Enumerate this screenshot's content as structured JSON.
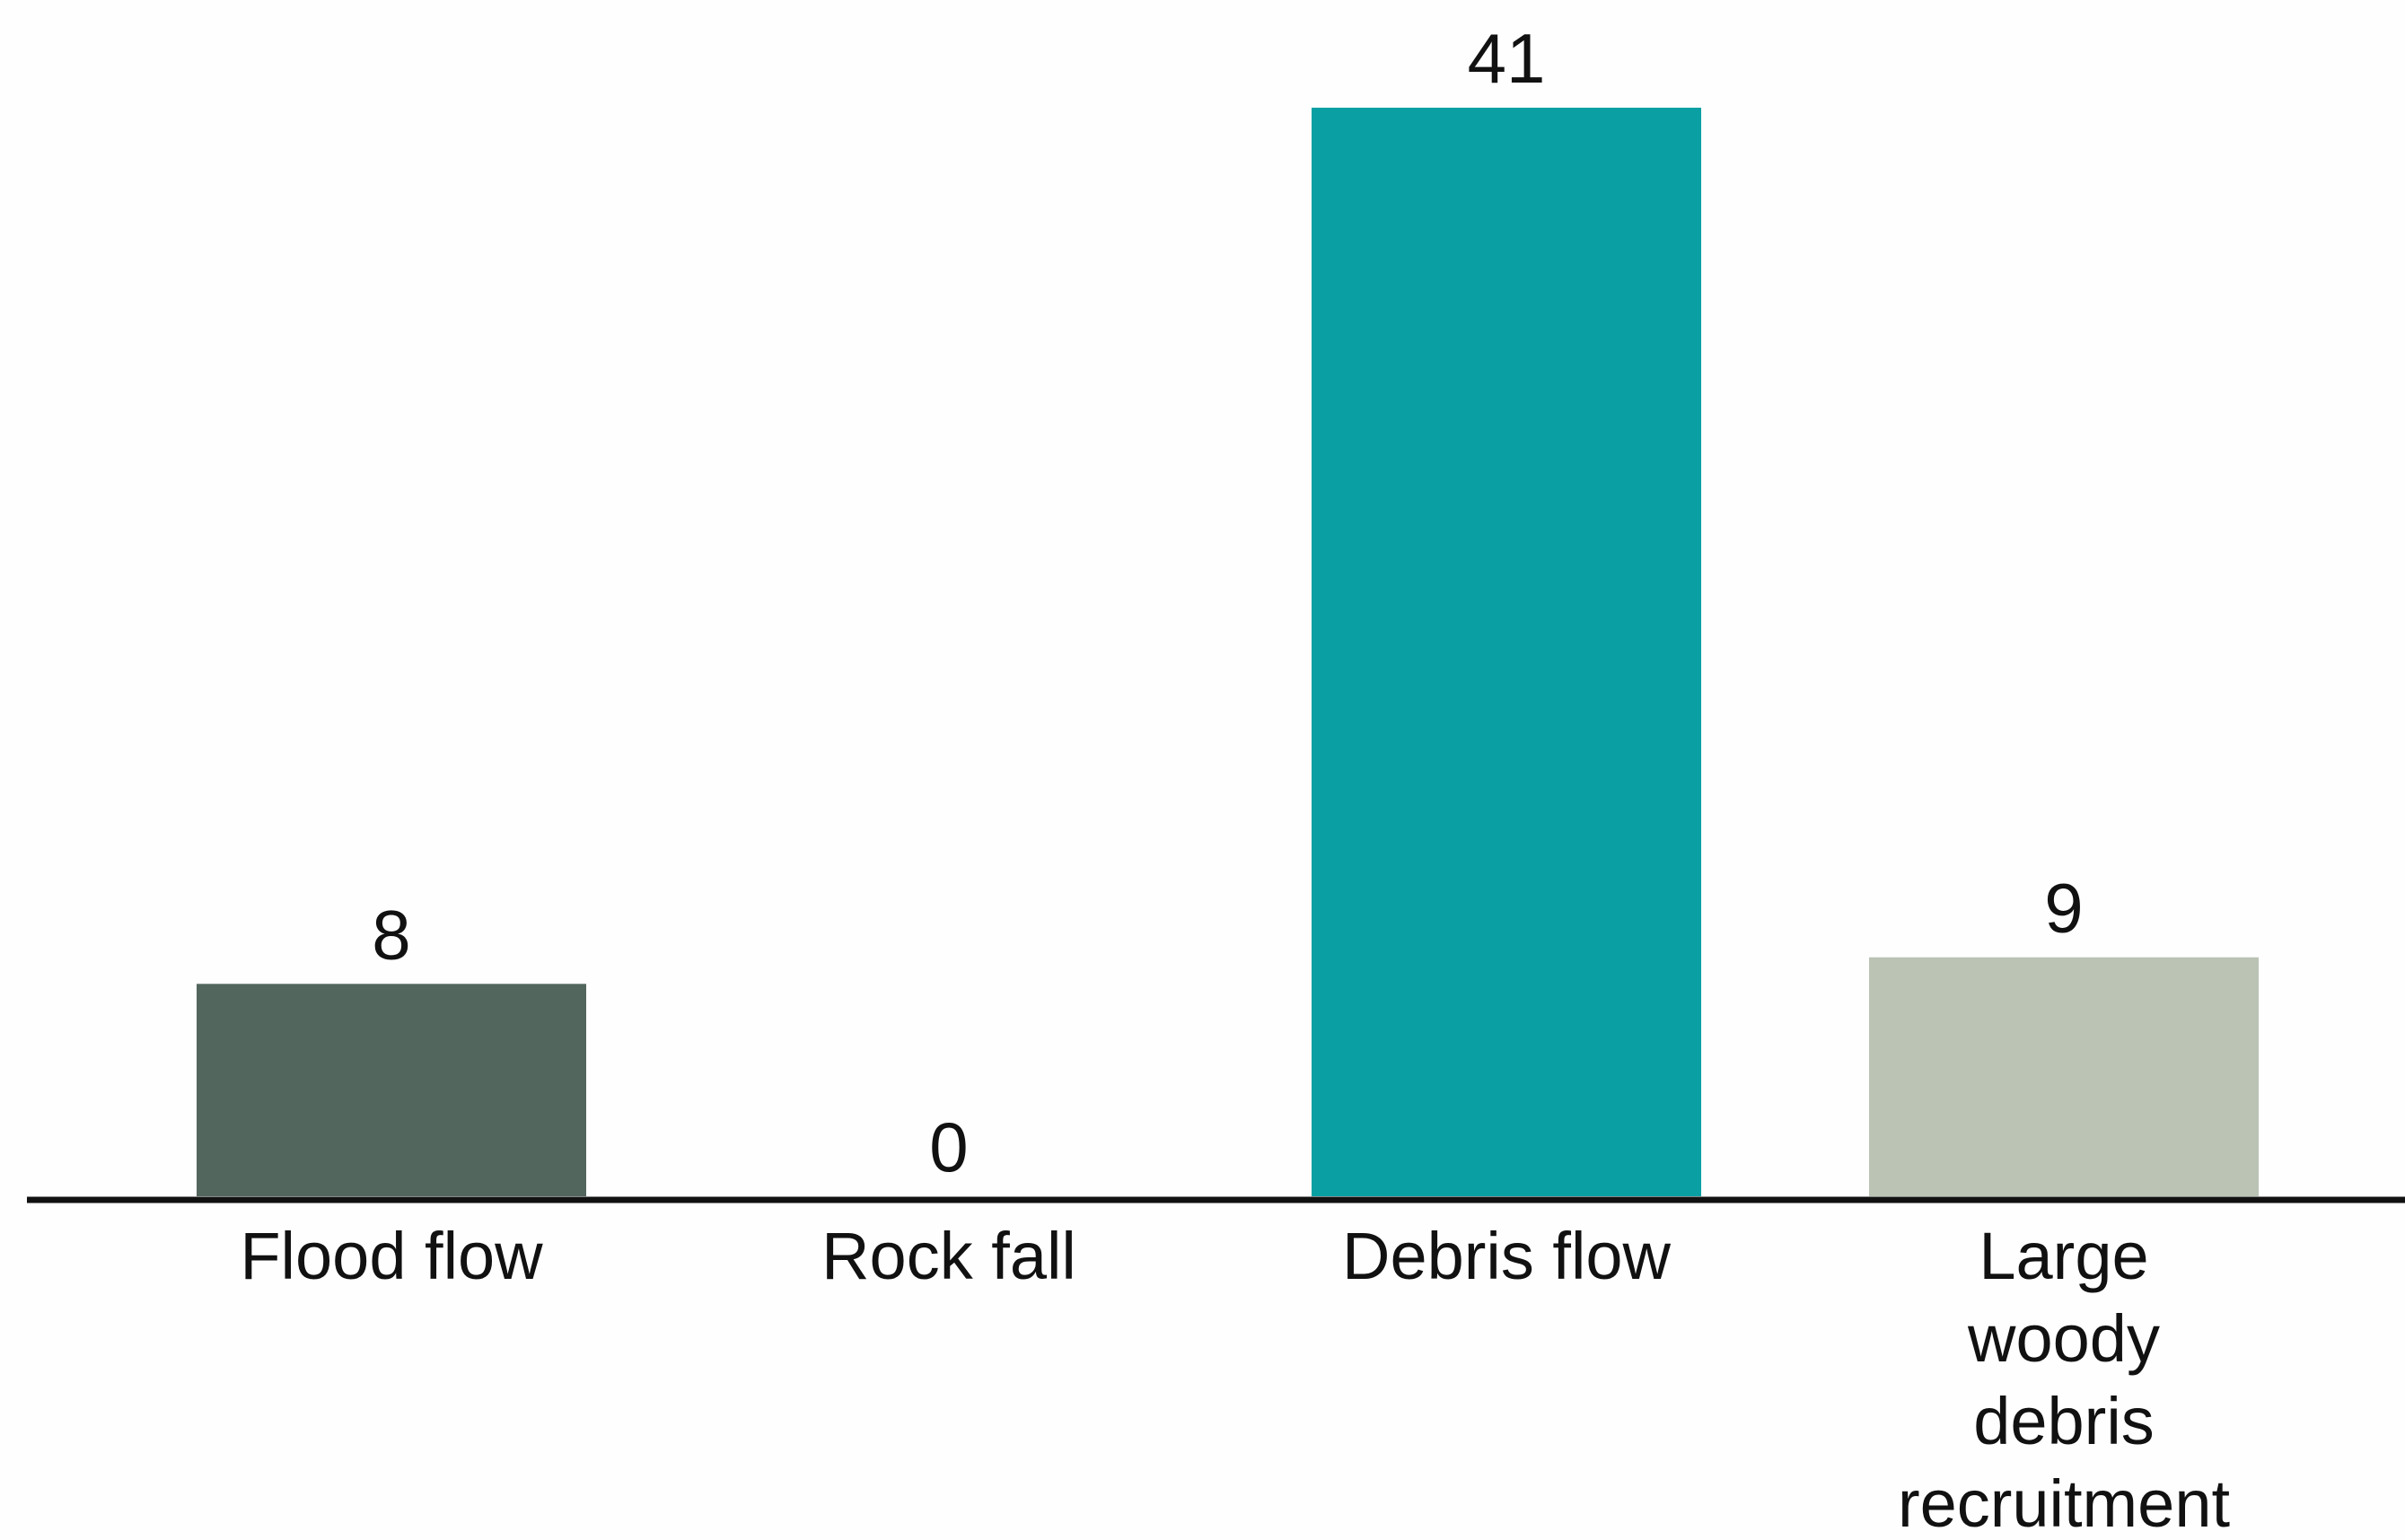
{
  "chart_data": {
    "type": "bar",
    "categories": [
      "Flood flow",
      "Rock fall",
      "Debris flow",
      "Large woody debris recruitment"
    ],
    "category_lines": [
      [
        "Flood flow"
      ],
      [
        "Rock fall"
      ],
      [
        "Debris flow"
      ],
      [
        "Large",
        "woody",
        "debris",
        "recruitment"
      ]
    ],
    "values": [
      8,
      0,
      41,
      9
    ],
    "value_labels": [
      "8",
      "0",
      "41",
      "9"
    ],
    "colors": [
      "#53665e",
      "#53665e",
      "#0aa0a3",
      "#bac3b4"
    ],
    "axis_color": "#111111",
    "ylim": [
      0,
      41
    ],
    "grid": false,
    "legend": "none",
    "title": "",
    "xlabel": "",
    "ylabel": ""
  }
}
